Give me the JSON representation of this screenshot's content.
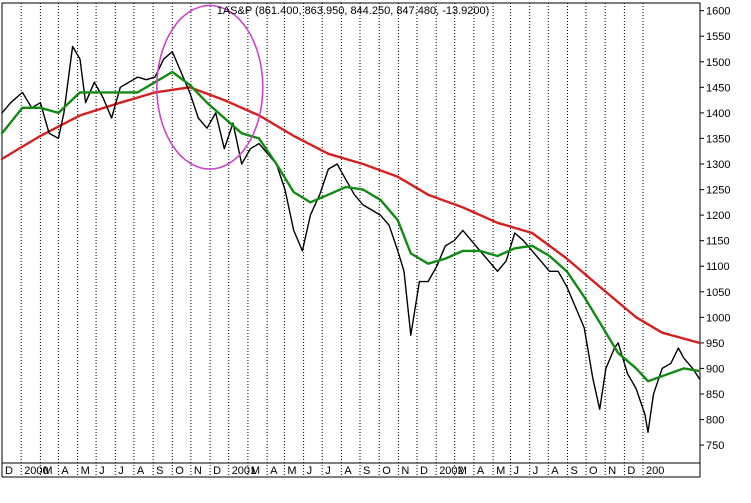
{
  "chart_data": {
    "type": "line",
    "title": "1AS&P (861.400, 863.950, 844.250, 847.480, -13.9200)",
    "xlabel": "",
    "ylabel": "",
    "grid": "vertical dotted lines at each month",
    "ylim": [
      715,
      1615
    ],
    "y_ticks": [
      750,
      800,
      850,
      900,
      950,
      1000,
      1050,
      1100,
      1150,
      1200,
      1250,
      1300,
      1350,
      1400,
      1450,
      1500,
      1550,
      1600
    ],
    "y_tick_labels": [
      "750",
      "800",
      "850",
      "900",
      "950",
      "1000",
      "1050",
      "1100",
      "1150",
      "1200",
      "1250",
      "1300",
      "1350",
      "1400",
      "1450",
      "1500",
      "1550",
      "1600"
    ],
    "x_tick_labels": [
      "D",
      "2000",
      "M",
      "A",
      "M",
      "J",
      "J",
      "A",
      "S",
      "O",
      "N",
      "D",
      "2001",
      "M",
      "A",
      "M",
      "J",
      "J",
      "A",
      "S",
      "O",
      "N",
      "D",
      "2002",
      "M",
      "A",
      "M",
      "J",
      "J",
      "A",
      "S",
      "O",
      "N",
      "D",
      "200"
    ],
    "series": [
      {
        "id": "price",
        "color": "#000000",
        "x": [
          "1999-12-01",
          "1999-12-15",
          "2000-01-03",
          "2000-01-18",
          "2000-02-01",
          "2000-02-15",
          "2000-03-01",
          "2000-03-10",
          "2000-03-24",
          "2000-04-05",
          "2000-04-14",
          "2000-04-28",
          "2000-05-12",
          "2000-05-26",
          "2000-06-09",
          "2000-06-23",
          "2000-07-07",
          "2000-07-21",
          "2000-08-04",
          "2000-08-18",
          "2000-09-01",
          "2000-09-15",
          "2000-09-29",
          "2000-10-13",
          "2000-10-27",
          "2000-11-10",
          "2000-11-24",
          "2000-12-08",
          "2000-12-22",
          "2001-01-05",
          "2001-01-19",
          "2001-02-02",
          "2001-02-16",
          "2001-03-02",
          "2001-03-16",
          "2001-03-30",
          "2001-04-12",
          "2001-04-27",
          "2001-05-11",
          "2001-05-25",
          "2001-06-08",
          "2001-06-22",
          "2001-07-06",
          "2001-07-20",
          "2001-08-03",
          "2001-08-17",
          "2001-08-31",
          "2001-09-10",
          "2001-09-21",
          "2001-10-05",
          "2001-10-19",
          "2001-11-02",
          "2001-11-16",
          "2001-11-30",
          "2001-12-14",
          "2001-12-28",
          "2002-01-11",
          "2002-01-25",
          "2002-02-08",
          "2002-02-22",
          "2002-03-08",
          "2002-03-22",
          "2002-04-05",
          "2002-04-19",
          "2002-05-03",
          "2002-05-17",
          "2002-05-31",
          "2002-06-14",
          "2002-06-28",
          "2002-07-12",
          "2002-07-23",
          "2002-08-02",
          "2002-08-16",
          "2002-08-22",
          "2002-09-06",
          "2002-09-20",
          "2002-10-04",
          "2002-10-09",
          "2002-10-18",
          "2002-11-01",
          "2002-11-15",
          "2002-11-27",
          "2002-12-06",
          "2002-12-20",
          "2002-12-31"
        ],
        "values": [
          1400,
          1420,
          1440,
          1410,
          1420,
          1360,
          1350,
          1400,
          1530,
          1505,
          1420,
          1460,
          1430,
          1390,
          1450,
          1460,
          1470,
          1465,
          1470,
          1505,
          1520,
          1480,
          1440,
          1390,
          1370,
          1400,
          1330,
          1380,
          1300,
          1330,
          1340,
          1320,
          1300,
          1250,
          1170,
          1130,
          1200,
          1240,
          1290,
          1300,
          1270,
          1240,
          1220,
          1210,
          1200,
          1180,
          1130,
          1090,
          965,
          1070,
          1070,
          1100,
          1140,
          1150,
          1170,
          1150,
          1130,
          1110,
          1090,
          1110,
          1165,
          1150,
          1130,
          1110,
          1090,
          1090,
          1060,
          1020,
          980,
          880,
          820,
          900,
          940,
          950,
          890,
          860,
          810,
          775,
          850,
          900,
          910,
          940,
          920,
          900,
          880
        ]
      },
      {
        "id": "moving-average-short",
        "color": "#138a13",
        "x": [
          "1999-12-01",
          "2000-01-03",
          "2000-02-01",
          "2000-03-01",
          "2000-04-05",
          "2000-05-12",
          "2000-06-09",
          "2000-07-07",
          "2000-08-04",
          "2000-09-01",
          "2000-09-29",
          "2000-10-27",
          "2000-11-24",
          "2000-12-22",
          "2001-01-19",
          "2001-02-16",
          "2001-03-16",
          "2001-04-12",
          "2001-05-11",
          "2001-06-08",
          "2001-07-06",
          "2001-08-03",
          "2001-08-31",
          "2001-09-21",
          "2001-10-19",
          "2001-11-16",
          "2001-12-14",
          "2002-01-11",
          "2002-02-08",
          "2002-03-08",
          "2002-04-05",
          "2002-05-03",
          "2002-05-31",
          "2002-06-28",
          "2002-07-23",
          "2002-08-22",
          "2002-09-20",
          "2002-10-09",
          "2002-11-01",
          "2002-12-06",
          "2002-12-31"
        ],
        "values": [
          1360,
          1410,
          1410,
          1400,
          1440,
          1440,
          1440,
          1440,
          1460,
          1480,
          1455,
          1420,
          1390,
          1360,
          1350,
          1300,
          1245,
          1225,
          1240,
          1255,
          1250,
          1230,
          1190,
          1125,
          1105,
          1115,
          1130,
          1130,
          1120,
          1135,
          1140,
          1120,
          1090,
          1040,
          990,
          930,
          900,
          875,
          885,
          900,
          895
        ]
      },
      {
        "id": "moving-average-long",
        "color": "#d42020",
        "x": [
          "1999-12-01",
          "2000-02-01",
          "2000-04-05",
          "2000-06-09",
          "2000-08-04",
          "2000-09-29",
          "2000-11-24",
          "2001-01-19",
          "2001-03-16",
          "2001-05-11",
          "2001-07-06",
          "2001-08-31",
          "2001-10-19",
          "2001-12-14",
          "2002-02-08",
          "2002-04-05",
          "2002-05-31",
          "2002-07-23",
          "2002-09-20",
          "2002-11-01",
          "2002-12-31"
        ],
        "values": [
          1310,
          1355,
          1395,
          1420,
          1440,
          1450,
          1425,
          1395,
          1355,
          1320,
          1300,
          1275,
          1240,
          1215,
          1185,
          1165,
          1115,
          1060,
          1000,
          970,
          950
        ]
      }
    ],
    "annotations": [
      {
        "type": "ellipse",
        "color": "#cc44cc",
        "x_range": [
          "2000-08-07",
          "2001-01-25"
        ],
        "y_range": [
          1290,
          1610
        ]
      }
    ]
  }
}
